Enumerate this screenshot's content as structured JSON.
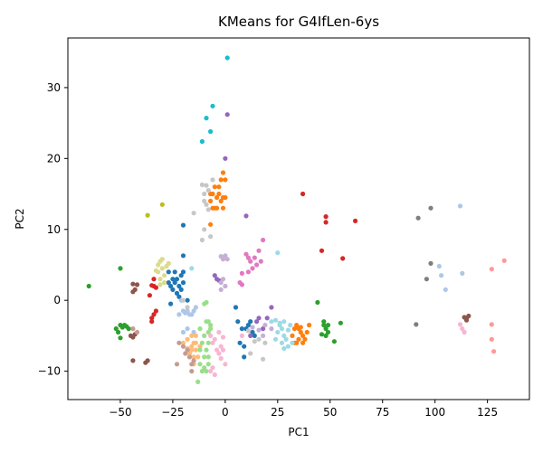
{
  "chart_data": {
    "type": "scatter",
    "title": "KMeans for G4IfLen-6ys",
    "xlabel": "PC1",
    "ylabel": "PC2",
    "xlim": [
      -75,
      145
    ],
    "ylim": [
      -14,
      37
    ],
    "xticks": [
      -50,
      -25,
      0,
      25,
      50,
      75,
      100,
      125
    ],
    "xtick_labels": [
      "−50",
      "−25",
      "0",
      "25",
      "50",
      "75",
      "100",
      "125"
    ],
    "yticks": [
      -10,
      0,
      10,
      20,
      30
    ],
    "ytick_labels": [
      "−10",
      "0",
      "10",
      "20",
      "30"
    ],
    "grid": false,
    "legend": "none",
    "series": [
      {
        "color": "#1f77b4",
        "points": [
          [
            -27,
            4
          ],
          [
            -26,
            2
          ],
          [
            -25,
            3
          ],
          [
            -24,
            2.5
          ],
          [
            -23,
            3
          ],
          [
            -22,
            2
          ],
          [
            -21,
            3.5
          ],
          [
            -20,
            2.5
          ],
          [
            -25,
            1.5
          ],
          [
            -27,
            2.5
          ],
          [
            -23,
            1
          ],
          [
            -21,
            1.5
          ],
          [
            -22,
            0.5
          ],
          [
            -24,
            4
          ],
          [
            -20,
            4
          ],
          [
            -26,
            -0.5
          ],
          [
            -20,
            6.3
          ],
          [
            -18,
            0
          ],
          [
            -20,
            10.6
          ],
          [
            5,
            -1
          ],
          [
            6,
            -3
          ],
          [
            7,
            -6
          ],
          [
            9,
            -6.5
          ],
          [
            8,
            -4
          ],
          [
            10,
            -4
          ],
          [
            12,
            -3
          ],
          [
            14,
            -5
          ],
          [
            9,
            -8
          ],
          [
            11,
            -3.5
          ],
          [
            13,
            -4.5
          ]
        ]
      },
      {
        "color": "#aec7e8",
        "points": [
          [
            -22,
            -2
          ],
          [
            -20,
            -1.5
          ],
          [
            -18,
            -1.5
          ],
          [
            -16,
            -2
          ],
          [
            -15,
            -1.5
          ],
          [
            -17,
            -2
          ],
          [
            -14,
            -1
          ],
          [
            -19,
            -1.8
          ],
          [
            -20,
            -4.5
          ],
          [
            -18,
            -4
          ],
          [
            -15,
            -4.5
          ],
          [
            -21,
            0
          ],
          [
            102,
            4.8
          ],
          [
            103,
            3.5
          ],
          [
            105,
            1.5
          ],
          [
            113,
            3.8
          ],
          [
            112,
            13.3
          ]
        ]
      },
      {
        "color": "#ff7f0e",
        "points": [
          [
            -7,
            14
          ],
          [
            -6,
            15
          ],
          [
            -5,
            13
          ],
          [
            -4,
            14.5
          ],
          [
            -3,
            15
          ],
          [
            -2,
            14
          ],
          [
            -1,
            14.5
          ],
          [
            -5,
            16
          ],
          [
            -3,
            16
          ],
          [
            -6,
            13
          ],
          [
            -4,
            13
          ],
          [
            -7,
            15
          ],
          [
            -1,
            13
          ],
          [
            -2,
            17
          ],
          [
            0,
            14.5
          ],
          [
            -1,
            18
          ],
          [
            0,
            17
          ],
          [
            -7,
            10.7
          ],
          [
            32,
            -5
          ],
          [
            33,
            -4
          ],
          [
            34,
            -6
          ],
          [
            35,
            -5.5
          ],
          [
            36,
            -4.5
          ],
          [
            37,
            -5
          ],
          [
            34,
            -3.5
          ],
          [
            36,
            -3.8
          ],
          [
            38,
            -5.5
          ],
          [
            33,
            -6
          ],
          [
            35,
            -4
          ],
          [
            37,
            -6
          ],
          [
            40,
            -3.5
          ],
          [
            39,
            -4.5
          ]
        ]
      },
      {
        "color": "#ffbb78",
        "points": [
          [
            -20,
            -6
          ],
          [
            -18,
            -5.5
          ],
          [
            -16,
            -7
          ],
          [
            -15,
            -6
          ],
          [
            -14,
            -5
          ],
          [
            -17,
            -8
          ],
          [
            -16,
            -6.5
          ],
          [
            -15,
            -8
          ],
          [
            -14,
            -7
          ],
          [
            -18,
            -6.8
          ],
          [
            -16,
            -5
          ],
          [
            -14,
            -6
          ],
          [
            -17,
            -7.5
          ],
          [
            -15,
            -9
          ],
          [
            -12,
            -6.5
          ],
          [
            -13,
            -8
          ]
        ]
      },
      {
        "color": "#2ca02c",
        "points": [
          [
            -65,
            2
          ],
          [
            -50,
            4.5
          ],
          [
            -52,
            -4
          ],
          [
            -50,
            -3.5
          ],
          [
            -51,
            -4.5
          ],
          [
            -49,
            -3.8
          ],
          [
            -50,
            -5.3
          ],
          [
            -48,
            -3.5
          ],
          [
            -46,
            -4
          ],
          [
            -47,
            -3.7
          ],
          [
            44,
            -0.3
          ],
          [
            47,
            -3
          ],
          [
            48,
            -4
          ],
          [
            49,
            -3.5
          ],
          [
            48,
            -5
          ],
          [
            46,
            -4.8
          ],
          [
            47,
            -3.5
          ],
          [
            49,
            -4.5
          ],
          [
            52,
            -5.8
          ],
          [
            55,
            -3.2
          ]
        ]
      },
      {
        "color": "#98df8a",
        "points": [
          [
            -12,
            -4
          ],
          [
            -10,
            -5
          ],
          [
            -8,
            -4.5
          ],
          [
            -9,
            -3
          ],
          [
            -11,
            -6
          ],
          [
            -8,
            -6
          ],
          [
            -7,
            -4
          ],
          [
            -9,
            -7
          ],
          [
            -12,
            -7
          ],
          [
            -8,
            -8
          ],
          [
            -10,
            -8
          ],
          [
            -11,
            -10
          ],
          [
            -9,
            -10
          ],
          [
            -8,
            -9
          ],
          [
            -12,
            -9
          ],
          [
            -13,
            -11.5
          ],
          [
            -10,
            -9.5
          ],
          [
            -7,
            -3.5
          ],
          [
            -10,
            -0.5
          ],
          [
            -9,
            -0.3
          ],
          [
            -8,
            -3
          ]
        ]
      },
      {
        "color": "#d62728",
        "points": [
          [
            -34,
            3
          ],
          [
            -34,
            2
          ],
          [
            -35,
            2.1
          ],
          [
            -33,
            1.8
          ],
          [
            -33,
            -1.5
          ],
          [
            -34,
            -2
          ],
          [
            -35,
            -2.5
          ],
          [
            -36,
            0.7
          ],
          [
            -35,
            -3
          ],
          [
            37,
            15
          ],
          [
            48,
            11.8
          ],
          [
            48,
            11
          ],
          [
            62,
            11.2
          ],
          [
            46,
            7
          ],
          [
            56,
            5.9
          ]
        ]
      },
      {
        "color": "#ff9896",
        "points": [
          [
            127,
            4.4
          ],
          [
            133,
            5.6
          ],
          [
            127,
            -3.4
          ],
          [
            127,
            -5.5
          ],
          [
            128,
            -7.2
          ]
        ]
      },
      {
        "color": "#9467bd",
        "points": [
          [
            1,
            26.2
          ],
          [
            0,
            20
          ],
          [
            10,
            11.9
          ],
          [
            -5,
            3.5
          ],
          [
            -4,
            3
          ],
          [
            -3,
            2.8
          ],
          [
            12,
            -5
          ],
          [
            15,
            -3
          ],
          [
            20,
            -2.5
          ],
          [
            22,
            -1
          ],
          [
            16,
            -2.5
          ],
          [
            18,
            -4
          ]
        ]
      },
      {
        "color": "#c5b0d5",
        "points": [
          [
            -2,
            6.2
          ],
          [
            -1,
            5.8
          ],
          [
            0,
            6.3
          ],
          [
            1,
            5.8
          ],
          [
            -2,
            2.5
          ],
          [
            -1,
            3
          ],
          [
            0,
            2
          ],
          [
            -2,
            1.5
          ],
          [
            13,
            -3.8
          ],
          [
            16,
            -4.2
          ],
          [
            18,
            -5
          ],
          [
            22,
            -4
          ],
          [
            19,
            -3.5
          ]
        ]
      },
      {
        "color": "#8c564b",
        "points": [
          [
            -43,
            1.5
          ],
          [
            -44,
            2.3
          ],
          [
            -42,
            2.2
          ],
          [
            -44,
            1.2
          ],
          [
            -45,
            -5
          ],
          [
            -44,
            -5.2
          ],
          [
            -43,
            -4.8
          ],
          [
            -44,
            -8.5
          ],
          [
            -38,
            -8.8
          ],
          [
            -37,
            -8.5
          ],
          [
            115,
            -2.6
          ],
          [
            114,
            -2.4
          ],
          [
            116,
            -2.2
          ],
          [
            115,
            -2.8
          ]
        ]
      },
      {
        "color": "#c49c94",
        "points": [
          [
            -44,
            -4
          ],
          [
            -42,
            -4.5
          ],
          [
            -22,
            -6
          ],
          [
            -23,
            -9
          ],
          [
            -18,
            -7
          ],
          [
            -17,
            -8
          ],
          [
            -16,
            -9
          ],
          [
            -20,
            -6.5
          ],
          [
            -19,
            -7.5
          ],
          [
            -15,
            -8.5
          ],
          [
            -16,
            -10
          ]
        ]
      },
      {
        "color": "#e377c2",
        "points": [
          [
            11,
            6
          ],
          [
            12,
            5.5
          ],
          [
            10,
            6.5
          ],
          [
            14,
            6
          ],
          [
            15,
            5
          ],
          [
            16,
            7
          ],
          [
            17,
            5.5
          ],
          [
            13,
            4.5
          ],
          [
            18,
            8.5
          ],
          [
            8,
            3.8
          ],
          [
            7,
            2.5
          ],
          [
            8,
            2.2
          ],
          [
            11,
            4
          ]
        ]
      },
      {
        "color": "#f7b6d2",
        "points": [
          [
            -7,
            -5
          ],
          [
            -5,
            -5.5
          ],
          [
            -3,
            -4.5
          ],
          [
            -6,
            -6
          ],
          [
            -4,
            -7
          ],
          [
            -2,
            -6.5
          ],
          [
            -1,
            -5.2
          ],
          [
            -3,
            -7.5
          ],
          [
            -1,
            -7
          ],
          [
            -2,
            -8.2
          ],
          [
            0,
            -9
          ],
          [
            -5,
            -10.5
          ],
          [
            -7,
            -10
          ],
          [
            -6,
            -9.5
          ],
          [
            8,
            -5
          ],
          [
            112,
            -3.4
          ],
          [
            113,
            -4
          ],
          [
            114,
            -4.5
          ]
        ]
      },
      {
        "color": "#7f7f7f",
        "points": [
          [
            92,
            11.6
          ],
          [
            98,
            13
          ],
          [
            96,
            3
          ],
          [
            98,
            5.2
          ],
          [
            91,
            -3.4
          ]
        ]
      },
      {
        "color": "#c7c7c7",
        "points": [
          [
            -10,
            15
          ],
          [
            -11,
            16.3
          ],
          [
            -9,
            16.2
          ],
          [
            -10,
            14
          ],
          [
            -9,
            13.5
          ],
          [
            -8,
            15.5
          ],
          [
            -6,
            17
          ],
          [
            -8,
            12.8
          ],
          [
            -15,
            12.3
          ],
          [
            -7,
            9
          ],
          [
            -11,
            8.5
          ],
          [
            -10,
            10
          ],
          [
            -20,
            0
          ],
          [
            -18,
            -1
          ],
          [
            11,
            -4.3
          ],
          [
            14,
            -5.8
          ],
          [
            16,
            -5.5
          ],
          [
            18,
            -8.3
          ],
          [
            12,
            -7.5
          ],
          [
            19,
            -6
          ]
        ]
      },
      {
        "color": "#bcbd22",
        "points": [
          [
            -37,
            12
          ],
          [
            -30,
            13.5
          ]
        ]
      },
      {
        "color": "#dbdb8d",
        "points": [
          [
            -32,
            5
          ],
          [
            -31,
            5.5
          ],
          [
            -30,
            4.5
          ],
          [
            -32,
            4
          ],
          [
            -29,
            3.5
          ],
          [
            -31,
            3
          ],
          [
            -30,
            5.8
          ],
          [
            -28,
            4.8
          ],
          [
            -33,
            4.2
          ],
          [
            -29,
            2.5
          ],
          [
            -31,
            2.2
          ],
          [
            -27,
            5.2
          ]
        ]
      },
      {
        "color": "#17becf",
        "points": [
          [
            1,
            34.2
          ],
          [
            -6,
            27.4
          ],
          [
            -9,
            25.7
          ],
          [
            -7,
            23.8
          ],
          [
            -11,
            22.4
          ]
        ]
      },
      {
        "color": "#9edae5",
        "points": [
          [
            -16,
            4.5
          ],
          [
            22,
            -3
          ],
          [
            24,
            -2.8
          ],
          [
            26,
            -3.2
          ],
          [
            25,
            -4.5
          ],
          [
            27,
            -4
          ],
          [
            28,
            -5
          ],
          [
            29,
            -5.5
          ],
          [
            27,
            -6
          ],
          [
            30,
            -6.5
          ],
          [
            28,
            -6.8
          ],
          [
            26,
            -3.5
          ],
          [
            30,
            -4.2
          ],
          [
            31,
            -3.5
          ],
          [
            32,
            -6
          ],
          [
            24,
            -5.5
          ],
          [
            28,
            -3
          ],
          [
            25,
            6.7
          ]
        ]
      }
    ]
  }
}
